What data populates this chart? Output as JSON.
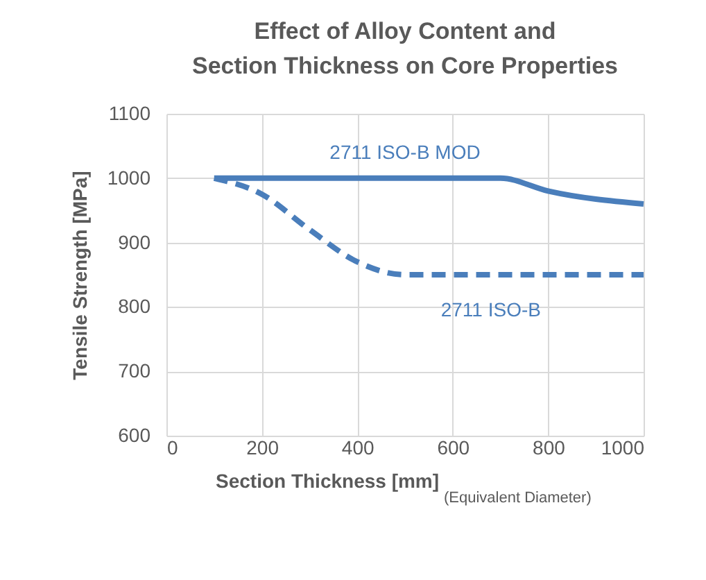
{
  "chart_data": {
    "type": "line",
    "title": "Effect of Alloy Content and Section Thickness on Core Properties",
    "xlabel": "Section Thickness [mm]",
    "ylabel": "Tensile Strength [MPa]",
    "annotations": [
      "(Equivalent Diameter)"
    ],
    "xlim": [
      0,
      1000
    ],
    "xticks": [
      0,
      200,
      400,
      600,
      800,
      1000
    ],
    "ylim": [
      600,
      1100
    ],
    "yticks": [
      600,
      700,
      800,
      900,
      1000,
      1100
    ],
    "grid": true,
    "legend": false,
    "marker": "none",
    "series": [
      {
        "name": "2711 ISO-B MOD",
        "color": "#4a7ebb",
        "line_style": "solid",
        "x": [
          100,
          700,
          800,
          1000
        ],
        "values": [
          1000,
          1000,
          980,
          960
        ]
      },
      {
        "name": "2711 ISO-B",
        "color": "#4a7ebb",
        "line_style": "dashed",
        "x": [
          100,
          200,
          300,
          400,
          500,
          1000
        ],
        "values": [
          1000,
          975,
          920,
          870,
          850,
          850
        ]
      }
    ]
  }
}
